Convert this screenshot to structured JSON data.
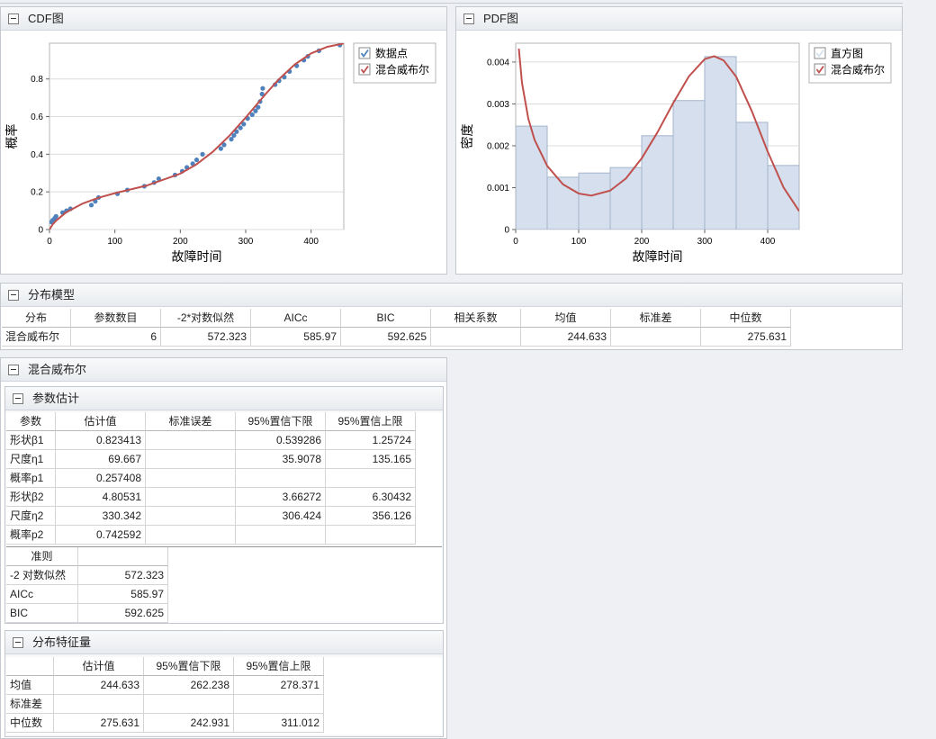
{
  "chart_data": [
    {
      "type": "scatter",
      "title": "CDF图",
      "xlabel": "故障时间",
      "ylabel": "概率",
      "xlim": [
        0,
        450
      ],
      "xticks": [
        0,
        100,
        200,
        300,
        400
      ],
      "ylim": [
        0,
        0.99
      ],
      "yticks": [
        0,
        0.2,
        0.4,
        0.6,
        0.8
      ],
      "grid": true,
      "series": [
        {
          "name": "数据点",
          "type": "scatter",
          "color": "#4f81bd",
          "x": [
            3,
            5,
            8,
            10,
            20,
            26,
            32,
            64,
            70,
            75,
            104,
            119,
            145,
            160,
            167,
            192,
            203,
            210,
            219,
            225,
            234,
            262,
            267,
            278,
            282,
            286,
            292,
            297,
            303,
            310,
            315,
            319,
            322,
            325,
            326,
            345,
            351,
            359,
            367,
            378,
            389,
            395,
            412,
            444
          ],
          "values": [
            0.04,
            0.05,
            0.06,
            0.07,
            0.09,
            0.1,
            0.11,
            0.13,
            0.15,
            0.17,
            0.19,
            0.21,
            0.23,
            0.25,
            0.27,
            0.29,
            0.31,
            0.33,
            0.35,
            0.37,
            0.4,
            0.43,
            0.45,
            0.48,
            0.5,
            0.52,
            0.54,
            0.56,
            0.59,
            0.61,
            0.63,
            0.65,
            0.68,
            0.72,
            0.75,
            0.77,
            0.79,
            0.81,
            0.84,
            0.87,
            0.9,
            0.92,
            0.95,
            0.98
          ]
        },
        {
          "name": "混合威布尔",
          "type": "line",
          "color": "#c0504d",
          "x": [
            0,
            5,
            10,
            25,
            50,
            75,
            100,
            150,
            200,
            225,
            250,
            275,
            300,
            330,
            350,
            375,
            400,
            425,
            450
          ],
          "values": [
            0,
            0.028,
            0.047,
            0.09,
            0.137,
            0.169,
            0.193,
            0.235,
            0.297,
            0.347,
            0.414,
            0.498,
            0.595,
            0.718,
            0.796,
            0.877,
            0.936,
            0.971,
            0.989
          ]
        }
      ]
    },
    {
      "type": "histogram",
      "title": "PDF图",
      "xlabel": "故障时间",
      "ylabel": "密度",
      "xlim": [
        0,
        450
      ],
      "xticks": [
        0,
        100,
        200,
        300,
        400
      ],
      "ylim": [
        0,
        0.00445
      ],
      "yticks": [
        0,
        0.001,
        0.002,
        0.003,
        0.004
      ],
      "grid": true,
      "bins": [
        0,
        50,
        100,
        150,
        200,
        250,
        300,
        350,
        400,
        450
      ],
      "series": [
        {
          "name": "直方图",
          "type": "histogram",
          "color": "#d5dfed",
          "values": [
            0.00247,
            0.00125,
            0.00135,
            0.00148,
            0.00224,
            0.00308,
            0.00413,
            0.00256,
            0.00153
          ]
        },
        {
          "name": "混合威布尔",
          "type": "line",
          "color": "#c0504d",
          "x": [
            5,
            10,
            20,
            30,
            50,
            75,
            100,
            120,
            150,
            175,
            200,
            225,
            250,
            275,
            300,
            315,
            330,
            350,
            375,
            400,
            425,
            450
          ],
          "values": [
            0.00432,
            0.0035,
            0.00265,
            0.00214,
            0.00152,
            0.00108,
            0.00086,
            0.00081,
            0.00093,
            0.00122,
            0.0017,
            0.00232,
            0.00302,
            0.00366,
            0.00407,
            0.00414,
            0.00404,
            0.00365,
            0.00282,
            0.00186,
            0.00101,
            0.00044
          ]
        }
      ]
    }
  ],
  "model_panel": {
    "title": "分布模型",
    "headers": [
      "分布",
      "参数数目",
      "-2*对数似然",
      "AICc",
      "BIC",
      "相关系数",
      "均值",
      "标准差",
      "中位数"
    ],
    "rows": [
      [
        "混合威布尔",
        6,
        572.323,
        585.97,
        592.625,
        null,
        244.633,
        null,
        275.631
      ]
    ]
  },
  "mixture_panel": {
    "title": "混合威布尔",
    "parameters": {
      "title": "参数估计",
      "headers": [
        "参数",
        "估计值",
        "标准误差",
        "95%置信下限",
        "95%置信上限"
      ],
      "rows": [
        [
          "形状β1",
          0.823413,
          null,
          0.539286,
          1.25724
        ],
        [
          "尺度η1",
          69.667,
          null,
          35.9078,
          135.165
        ],
        [
          "概率p1",
          0.257408,
          null,
          null,
          null
        ],
        [
          "形状β2",
          4.80531,
          null,
          3.66272,
          6.30432
        ],
        [
          "尺度η2",
          330.342,
          null,
          306.424,
          356.126
        ],
        [
          "概率p2",
          0.742592,
          null,
          null,
          null
        ]
      ]
    },
    "criteria": {
      "headers": [
        "准则"
      ],
      "rows": [
        [
          "-2 对数似然",
          572.323
        ],
        [
          "AICc",
          585.97
        ],
        [
          "BIC",
          592.625
        ]
      ]
    },
    "characteristics": {
      "title": "分布特征量",
      "headers": [
        "估计值",
        "95%置信下限",
        "95%置信上限"
      ],
      "rows": [
        [
          "均值",
          244.633,
          262.238,
          278.371
        ],
        [
          "标准差",
          null,
          null,
          null
        ],
        [
          "中位数",
          275.631,
          242.931,
          311.012
        ]
      ]
    }
  }
}
